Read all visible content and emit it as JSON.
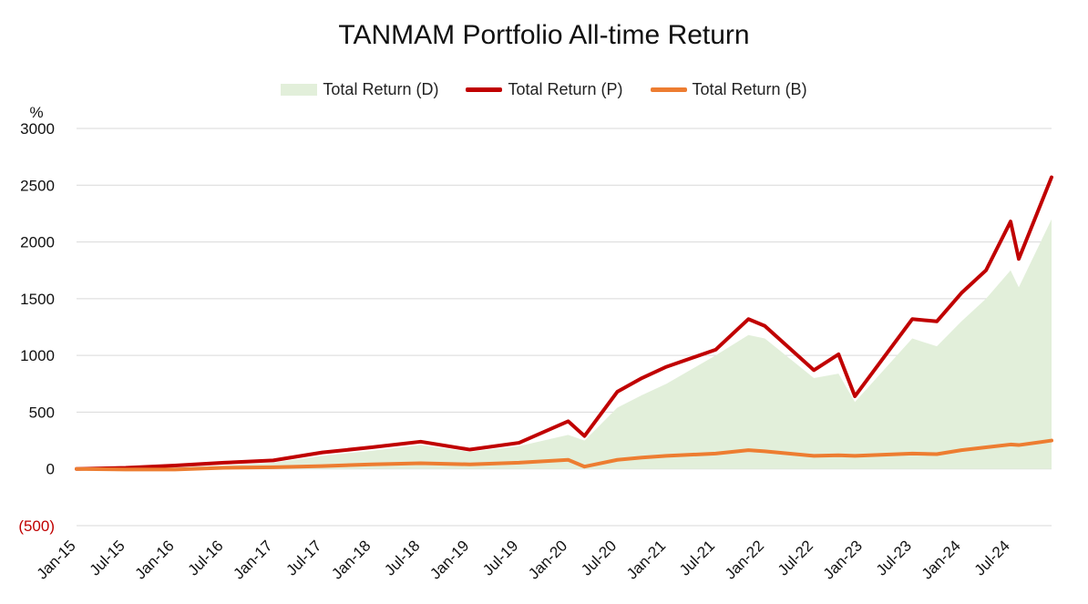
{
  "chart_data": {
    "type": "line",
    "title": "TANMAM Portfolio All-time Return",
    "ylabel": "%",
    "ylim": [
      -500,
      3000
    ],
    "yticks": [
      {
        "value": 3000,
        "label": "3000"
      },
      {
        "value": 2500,
        "label": "2500"
      },
      {
        "value": 2000,
        "label": "2000"
      },
      {
        "value": 1500,
        "label": "1500"
      },
      {
        "value": 1000,
        "label": "1000"
      },
      {
        "value": 500,
        "label": "500"
      },
      {
        "value": 0,
        "label": "0"
      },
      {
        "value": -500,
        "label": "(500)"
      }
    ],
    "xticks": [
      "Jan-15",
      "Jul-15",
      "Jan-16",
      "Jul-16",
      "Jan-17",
      "Jul-17",
      "Jan-18",
      "Jul-18",
      "Jan-19",
      "Jul-19",
      "Jan-20",
      "Jul-20",
      "Jan-21",
      "Jul-21",
      "Jan-22",
      "Jul-22",
      "Jan-23",
      "Jul-23",
      "Jan-24",
      "Jul-24"
    ],
    "x": [
      "Jan-15",
      "Jul-15",
      "Jan-16",
      "Jul-16",
      "Jan-17",
      "Jul-17",
      "Jan-18",
      "Jul-18",
      "Jan-19",
      "Jul-19",
      "Jan-20",
      "Mar-20",
      "Jul-20",
      "Oct-20",
      "Jan-21",
      "Jul-21",
      "Nov-21",
      "Jan-22",
      "Jul-22",
      "Oct-22",
      "Dec-22",
      "Jul-23",
      "Oct-23",
      "Jan-24",
      "Apr-24",
      "Jul-24",
      "Aug-24",
      "Dec-24"
    ],
    "grid": true,
    "legend_position": "top-center",
    "series": [
      {
        "name": "Total Return (D)",
        "kind": "area",
        "color": "#e2efda",
        "values": [
          0,
          5,
          15,
          30,
          55,
          115,
          160,
          210,
          150,
          200,
          300,
          250,
          540,
          650,
          750,
          1000,
          1180,
          1150,
          800,
          840,
          590,
          1150,
          1080,
          1300,
          1500,
          1750,
          1600,
          2200
        ]
      },
      {
        "name": "Total Return (P)",
        "kind": "line",
        "color": "#c00000",
        "values": [
          0,
          10,
          30,
          55,
          75,
          145,
          190,
          240,
          170,
          230,
          420,
          290,
          680,
          800,
          900,
          1050,
          1320,
          1260,
          870,
          1010,
          640,
          1320,
          1300,
          1550,
          1750,
          2180,
          1850,
          2570
        ]
      },
      {
        "name": "Total Return (B)",
        "kind": "line",
        "color": "#ed7d31",
        "values": [
          0,
          -5,
          -5,
          10,
          15,
          25,
          40,
          50,
          40,
          55,
          80,
          20,
          80,
          100,
          115,
          135,
          165,
          155,
          115,
          120,
          115,
          135,
          130,
          165,
          190,
          215,
          210,
          250
        ]
      }
    ]
  }
}
